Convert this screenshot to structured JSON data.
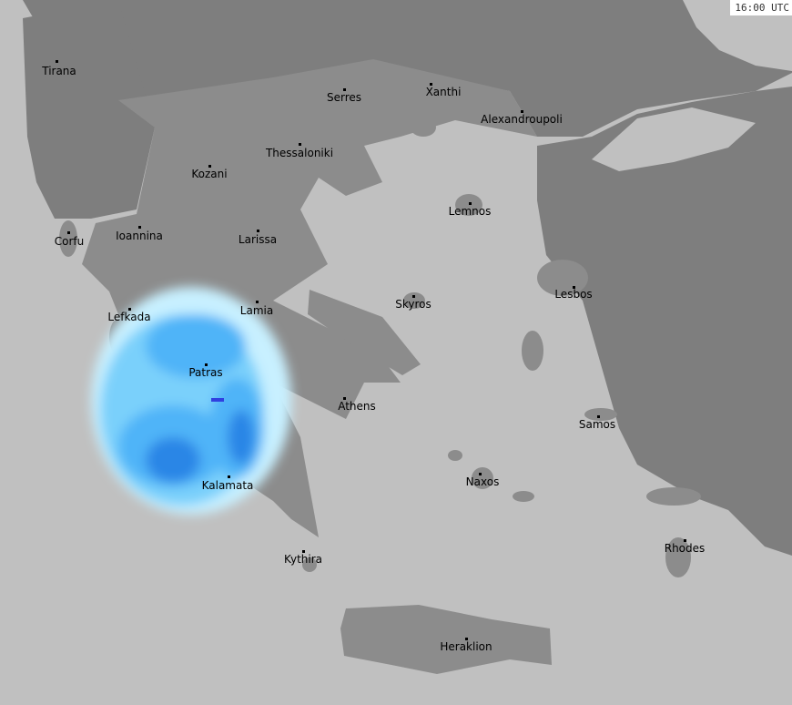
{
  "timestamp": "16:00 UTC",
  "colors": {
    "sea": "#c0c0c0",
    "greece_land": "#8c8c8c",
    "other_land": "#7e7e7e",
    "rain_light": "#c8f0ff",
    "rain_medium": "#50b4f8",
    "rain_heavy": "#2a86e6",
    "rain_intense": "#3040e0"
  },
  "cities": [
    {
      "name": "Tirana",
      "dot": [
        62,
        67
      ],
      "label": [
        65,
        72
      ]
    },
    {
      "name": "Serres",
      "dot": [
        378,
        98
      ],
      "label": [
        378,
        101
      ]
    },
    {
      "name": "Xanthi",
      "dot": [
        473,
        92
      ],
      "label": [
        487,
        95
      ]
    },
    {
      "name": "Alexandroupoli",
      "dot": [
        573,
        122
      ],
      "label": [
        573,
        125
      ]
    },
    {
      "name": "Thessaloniki",
      "dot": [
        329,
        158
      ],
      "label": [
        329,
        162
      ]
    },
    {
      "name": "Kozani",
      "dot": [
        230,
        182
      ],
      "label": [
        230,
        185
      ]
    },
    {
      "name": "Lemnos",
      "dot": [
        516,
        223
      ],
      "label": [
        516,
        226
      ]
    },
    {
      "name": "Corfu",
      "dot": [
        75,
        255
      ],
      "label": [
        76,
        259
      ]
    },
    {
      "name": "Ioannina",
      "dot": [
        153,
        249
      ],
      "label": [
        153,
        253
      ]
    },
    {
      "name": "Larissa",
      "dot": [
        283,
        253
      ],
      "label": [
        283,
        257
      ]
    },
    {
      "name": "Skyros",
      "dot": [
        454,
        325
      ],
      "label": [
        454,
        328
      ]
    },
    {
      "name": "Lesbos",
      "dot": [
        630,
        315
      ],
      "label": [
        630,
        317
      ]
    },
    {
      "name": "Lefkada",
      "dot": [
        142,
        339
      ],
      "label": [
        142,
        342
      ]
    },
    {
      "name": "Lamia",
      "dot": [
        282,
        331
      ],
      "label": [
        282,
        335
      ]
    },
    {
      "name": "Patras",
      "dot": [
        226,
        400
      ],
      "label": [
        226,
        403
      ]
    },
    {
      "name": "Athens",
      "dot": [
        378,
        437
      ],
      "label": [
        392,
        440
      ]
    },
    {
      "name": "Samos",
      "dot": [
        657,
        457
      ],
      "label": [
        656,
        460
      ]
    },
    {
      "name": "Naxos",
      "dot": [
        527,
        520
      ],
      "label": [
        530,
        523
      ]
    },
    {
      "name": "Kalamata",
      "dot": [
        251,
        523
      ],
      "label": [
        250,
        527
      ]
    },
    {
      "name": "Rhodes",
      "dot": [
        752,
        593
      ],
      "label": [
        752,
        596
      ]
    },
    {
      "name": "Kythira",
      "dot": [
        333,
        605
      ],
      "label": [
        333,
        608
      ]
    },
    {
      "name": "Heraklion",
      "dot": [
        512,
        701
      ],
      "label": [
        512,
        704
      ]
    }
  ]
}
